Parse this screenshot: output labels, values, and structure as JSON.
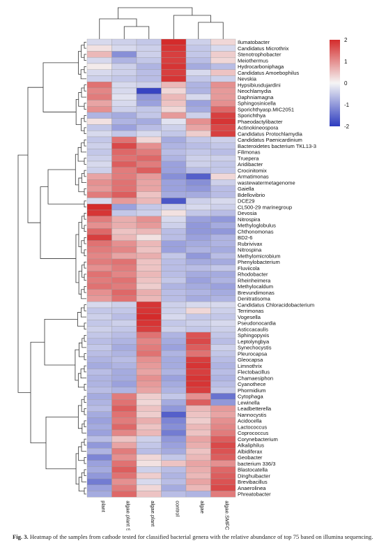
{
  "caption": {
    "label": "Fig. 3.",
    "text": "Heatmap of the samples from cathode tested for classified bacterial genera with the relative abundance of top 75 based on illumina sequencing."
  },
  "chart_data": {
    "type": "heatmap",
    "title": "",
    "columns": [
      "plant",
      "algae.plant SMFC",
      "algae.plant",
      "control",
      "algae",
      "algae.SMFC"
    ],
    "rows": [
      "Ilumatobacter",
      "Candidatus Microthrix",
      "Stenotrophobacter",
      "Meiothermus",
      "Hydrocarbonipha­ga",
      "Candidatus Amoebophilus",
      "Nevskia",
      "Hypsibiusdujardini",
      "Neochlamydia",
      "Daphniamagna",
      "Sphingosinicella",
      "Sporichthyasp.MIC2051",
      "Sporichthya",
      "Phaeodactylibacter",
      "Actinokineospora",
      "Candidatus Protochlamydia",
      "Candidatus Paenicardinium",
      "Bacteroidetes bacterium TKL13-3",
      "Filimonas",
      "Truepera",
      "Aridibacter",
      "Crocinitomix",
      "Armatimonas",
      "wastewatermetagenome",
      "Gaiella",
      "Bdellovibrio",
      "DCE29",
      "CL500-29 marinegroup",
      "Devosia",
      "Nitrospira",
      "Methyloglobulus",
      "Chthonomonas",
      "BD2-6",
      "Rubrivivax",
      "Nitrospina",
      "Methylomicrobium",
      "Phenylobacterium",
      "Fluviicola",
      "Rhodobacter",
      "Rheinheimera",
      "Methylocaldum",
      "Brevundimonas",
      "Denitratisoma",
      "Candidatus Chloracidobacterium",
      "Terrimonas",
      "Vogesella",
      "Pseudonocardia",
      "Asticcacaulis",
      "Sphingopyxis",
      "Leptolyngbya",
      "Synechocystis",
      "Pleurocapsa",
      "Gleocapsa",
      "Limnothrix",
      "Flectobacillus",
      "Chamaesiphon",
      "Cyanothece",
      "Phormidium",
      "Cytophaga",
      "Lewinella",
      "Leadbetterella",
      "Nannocystis",
      "Acidocella",
      "Lactococcus",
      "Coprococcus",
      "Corynebacterium",
      "Alkaliphilus",
      "Albidiferax",
      "Geobacter",
      "bacterium 336/3",
      "Blastocatella",
      "Dinghuibacter",
      "Brevibacillus",
      "Anaerolinea",
      "Phreatobacter"
    ],
    "values": [
      [
        -0.3,
        -0.4,
        -0.5,
        2.0,
        -0.4,
        0.3
      ],
      [
        0.2,
        -0.3,
        -0.4,
        1.9,
        -0.5,
        -0.3
      ],
      [
        0.6,
        -1.1,
        -0.4,
        1.8,
        -0.5,
        0.4
      ],
      [
        -0.3,
        -0.7,
        -0.5,
        1.8,
        -0.6,
        0.3
      ],
      [
        0.1,
        -0.4,
        -0.7,
        1.9,
        -0.8,
        -0.6
      ],
      [
        -0.3,
        -0.4,
        -0.6,
        1.8,
        -0.3,
        0.5
      ],
      [
        -0.4,
        -0.5,
        -0.6,
        1.9,
        -0.5,
        -0.4
      ],
      [
        1.3,
        -0.3,
        -0.4,
        0.6,
        -0.7,
        1.0
      ],
      [
        1.1,
        -0.3,
        -1.9,
        0.3,
        -0.7,
        0.9
      ],
      [
        1.2,
        -0.2,
        -1.0,
        0.6,
        -0.3,
        0.9
      ],
      [
        0.8,
        -0.3,
        -0.9,
        0.5,
        -0.9,
        1.0
      ],
      [
        1.0,
        -0.4,
        -0.5,
        0.3,
        -0.8,
        1.4
      ],
      [
        -0.7,
        -0.8,
        -0.5,
        0.9,
        -0.4,
        1.8
      ],
      [
        0.2,
        -0.7,
        -0.8,
        -0.2,
        1.0,
        1.9
      ],
      [
        -0.5,
        -0.9,
        -0.6,
        -0.4,
        0.8,
        1.7
      ],
      [
        -0.3,
        -0.5,
        -0.3,
        -0.5,
        0.4,
        1.8
      ],
      [
        -0.5,
        1.3,
        0.3,
        -0.8,
        -0.5,
        -0.4
      ],
      [
        -0.4,
        1.7,
        1.0,
        -0.7,
        -0.6,
        -0.5
      ],
      [
        -0.5,
        1.4,
        1.2,
        -0.6,
        -0.5,
        -0.6
      ],
      [
        -0.4,
        1.3,
        1.4,
        -0.7,
        -0.4,
        -0.4
      ],
      [
        -0.3,
        1.5,
        1.2,
        -0.9,
        -0.4,
        -0.5
      ],
      [
        -0.4,
        1.2,
        1.5,
        -0.9,
        -0.6,
        -0.5
      ],
      [
        0.8,
        1.2,
        0.9,
        -1.1,
        -1.6,
        0.3
      ],
      [
        1.0,
        1.3,
        0.8,
        -0.9,
        -1.1,
        -0.4
      ],
      [
        0.9,
        1.3,
        0.8,
        -0.9,
        -1.0,
        -0.6
      ],
      [
        1.2,
        1.5,
        0.5,
        -0.8,
        -0.8,
        -0.6
      ],
      [
        -0.3,
        0.9,
        0.6,
        -1.7,
        -0.4,
        -0.3
      ],
      [
        2.0,
        -0.9,
        -0.5,
        -0.4,
        -0.3,
        -0.4
      ],
      [
        1.9,
        -0.5,
        -0.4,
        0.2,
        -0.5,
        -0.6
      ],
      [
        1.2,
        0.7,
        1.0,
        -0.3,
        -0.9,
        -1.0
      ],
      [
        1.0,
        0.7,
        0.9,
        -0.4,
        -1.0,
        -0.8
      ],
      [
        1.4,
        0.5,
        0.6,
        -0.6,
        -1.0,
        -1.0
      ],
      [
        1.8,
        0.6,
        0.2,
        -0.6,
        -0.9,
        -0.7
      ],
      [
        1.3,
        1.0,
        0.6,
        -0.9,
        -0.8,
        -0.7
      ],
      [
        1.2,
        1.1,
        0.5,
        -0.9,
        -0.7,
        -0.8
      ],
      [
        1.1,
        0.8,
        0.7,
        -0.5,
        -1.0,
        -0.6
      ],
      [
        1.2,
        1.3,
        0.5,
        -0.6,
        -0.8,
        -0.8
      ],
      [
        1.0,
        1.2,
        0.5,
        -0.6,
        -0.6,
        -0.5
      ],
      [
        1.3,
        1.1,
        0.6,
        -0.6,
        -0.8,
        -0.8
      ],
      [
        1.2,
        1.3,
        0.5,
        -0.5,
        -0.9,
        -0.7
      ],
      [
        1.3,
        1.2,
        0.4,
        -0.7,
        -0.8,
        -0.9
      ],
      [
        1.0,
        1.4,
        0.7,
        -0.6,
        -0.7,
        -0.8
      ],
      [
        0.9,
        1.3,
        0.6,
        -0.6,
        -0.8,
        -0.7
      ],
      [
        -0.3,
        -0.4,
        1.9,
        -0.4,
        -0.3,
        -0.3
      ],
      [
        -0.5,
        -0.5,
        1.9,
        -0.4,
        0.3,
        -0.4
      ],
      [
        -0.4,
        -0.6,
        2.0,
        -0.3,
        -0.5,
        -0.5
      ],
      [
        -0.5,
        -0.4,
        1.9,
        -0.5,
        -0.4,
        -0.3
      ],
      [
        -0.4,
        -0.5,
        1.8,
        -0.4,
        -0.5,
        -0.4
      ],
      [
        -0.5,
        -0.6,
        1.3,
        -0.7,
        1.6,
        -0.5
      ],
      [
        -0.6,
        -0.7,
        1.1,
        -0.8,
        1.7,
        -0.6
      ],
      [
        -0.5,
        -0.8,
        1.2,
        -0.9,
        1.5,
        -0.4
      ],
      [
        -0.6,
        -0.7,
        1.3,
        -0.7,
        1.3,
        -0.5
      ],
      [
        -0.7,
        -0.6,
        1.0,
        -0.8,
        1.8,
        -0.6
      ],
      [
        -0.8,
        -0.7,
        0.9,
        -0.8,
        1.9,
        -0.7
      ],
      [
        -0.6,
        -0.8,
        0.8,
        -0.7,
        1.8,
        -0.6
      ],
      [
        -0.7,
        -0.8,
        1.0,
        -0.9,
        1.9,
        -0.7
      ],
      [
        -0.7,
        -0.9,
        0.9,
        -0.8,
        1.9,
        -0.6
      ],
      [
        -0.6,
        -0.7,
        0.8,
        -0.7,
        1.8,
        -0.5
      ],
      [
        -0.8,
        1.2,
        0.4,
        -0.5,
        1.0,
        -1.4
      ],
      [
        -0.7,
        1.3,
        0.3,
        -0.8,
        1.5,
        -1.0
      ],
      [
        -0.6,
        1.5,
        0.5,
        -1.0,
        0.6,
        0.9
      ],
      [
        -0.8,
        1.3,
        0.4,
        -1.6,
        0.5,
        0.8
      ],
      [
        -0.9,
        1.2,
        0.7,
        -1.2,
        0.4,
        1.0
      ],
      [
        -0.8,
        1.4,
        0.5,
        -1.1,
        0.6,
        1.1
      ],
      [
        -0.9,
        1.1,
        0.6,
        -1.3,
        0.5,
        1.2
      ],
      [
        -0.6,
        0.5,
        -0.4,
        -1.0,
        0.8,
        1.5
      ],
      [
        -1.0,
        0.8,
        -0.5,
        -0.9,
        0.7,
        1.7
      ],
      [
        -0.7,
        1.2,
        -0.6,
        -0.8,
        0.5,
        1.6
      ],
      [
        -1.2,
        1.0,
        0.3,
        -0.5,
        0.6,
        1.5
      ],
      [
        -0.9,
        1.3,
        0.2,
        0.5,
        0.8,
        1.0
      ],
      [
        -0.8,
        1.5,
        -0.4,
        -0.6,
        0.7,
        1.4
      ],
      [
        -1.0,
        1.3,
        0.4,
        -0.7,
        0.6,
        1.5
      ],
      [
        -1.3,
        1.0,
        -0.3,
        -0.6,
        0.8,
        1.6
      ],
      [
        -0.9,
        1.2,
        0.3,
        -0.8,
        0.6,
        1.7
      ],
      [
        -0.8,
        1.4,
        0.5,
        -0.6,
        -0.7,
        1.2
      ]
    ],
    "legend": {
      "min": -2,
      "max": 2,
      "ticks": [
        2,
        1,
        0,
        -1,
        -2
      ],
      "colors": {
        "low": "#2d3bbf",
        "mid": "#f5f5f5",
        "high": "#d42b2b"
      },
      "position": "top-right"
    }
  }
}
